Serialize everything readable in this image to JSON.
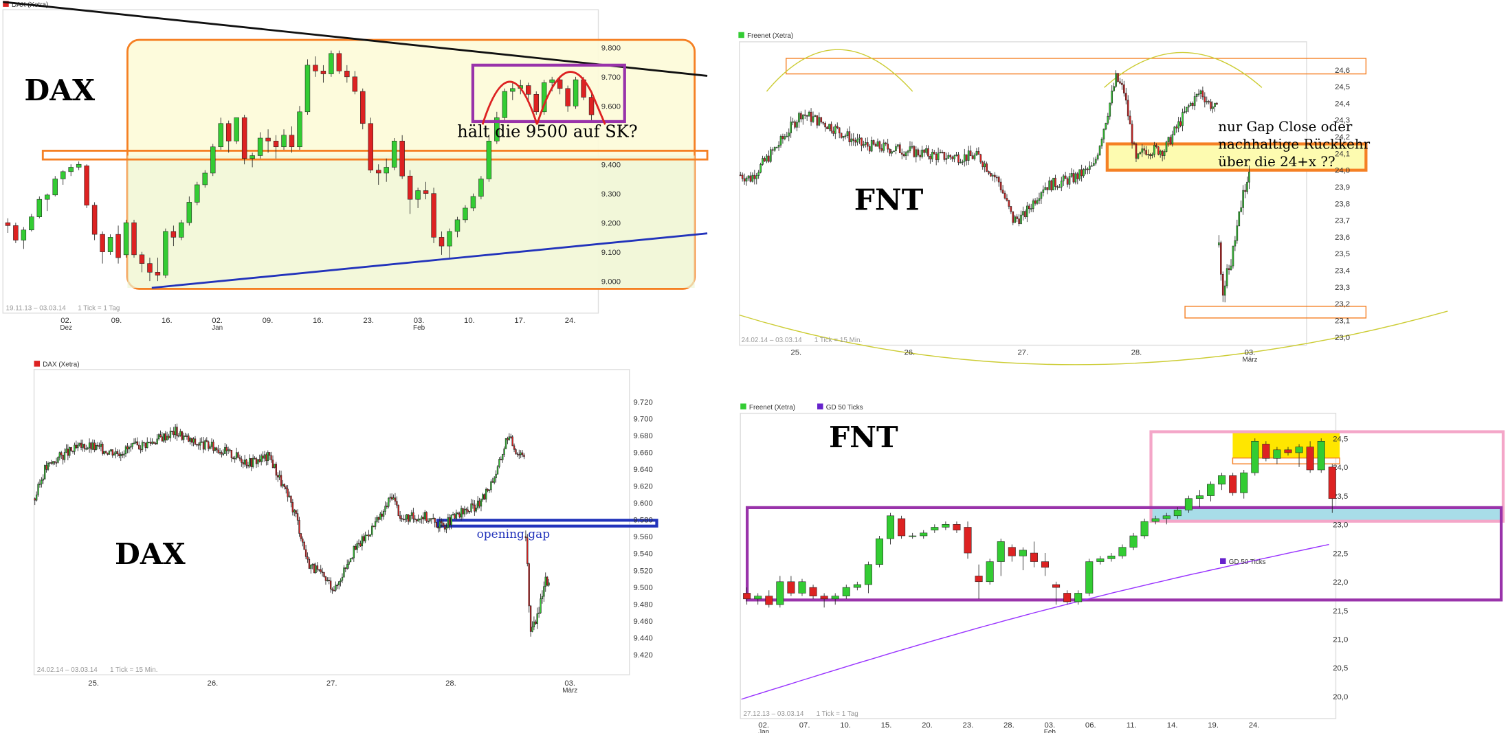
{
  "charts": [
    {
      "id": "dax-daily",
      "legend": "DAX (Xetra)",
      "title": "DAX",
      "range_text": "19.11.13 – 03.03.14",
      "tick_text": "1 Tick = 1 Tag",
      "annotation": "hält die 9500 auf SK?",
      "colors": {
        "up": "#33cc33",
        "down": "#dd2222",
        "box": "#f58024",
        "trend_top": "#111111",
        "trend_bottom": "#2233bb",
        "pattern": "#9933aa"
      }
    },
    {
      "id": "fnt-15min",
      "legend": "Freenet (Xetra)",
      "title": "FNT",
      "range_text": "24.02.14 – 03.03.14",
      "tick_text": "1 Tick = 15 Min.",
      "annotation_lines": [
        "nur Gap Close oder",
        "nachhaltige Rückkehr",
        "über die 24+x ??"
      ],
      "colors": {
        "up": "#33cc33",
        "down": "#dd2222",
        "zone": "#f58024",
        "arc": "#cccc33"
      }
    },
    {
      "id": "dax-15min",
      "legend": "DAX (Xetra)",
      "title": "DAX",
      "range_text": "24.02.14 – 03.03.14",
      "tick_text": "1 Tick = 15 Min.",
      "annotation": "opening gap",
      "colors": {
        "up": "#33cc33",
        "down": "#dd2222",
        "gap": "#2233bb"
      }
    },
    {
      "id": "fnt-daily",
      "legend": "Freenet (Xetra)",
      "legend2": "GD 50 Ticks",
      "inner_legend": "GD 50 Ticks",
      "title": "FNT",
      "range_text": "27.12.13 – 03.03.14",
      "tick_text": "1 Tick = 1 Tag",
      "colors": {
        "up": "#33cc33",
        "down": "#dd2222",
        "gd50": "#9933ff",
        "range_box": "#9933aa",
        "upper_box": "#f4a6c8",
        "highlight": "#ffe600",
        "support_fill": "#a8dde8"
      }
    }
  ],
  "chart_data": [
    {
      "type": "candlestick",
      "title": "DAX",
      "x_ticks": [
        "02.",
        "09.",
        "16.",
        "02.",
        "09.",
        "16.",
        "23.",
        "03.",
        "10.",
        "17.",
        "24."
      ],
      "x_months": [
        "Dez",
        "Jan",
        "Feb"
      ],
      "y_ticks": [
        "9.800",
        "9.700",
        "9.600",
        "9.400",
        "9.300",
        "9.200",
        "9.100",
        "9.000"
      ],
      "ylim": [
        8980,
        9830
      ],
      "candles": [
        [
          9200,
          9215,
          9165,
          9190
        ],
        [
          9190,
          9200,
          9130,
          9140
        ],
        [
          9140,
          9185,
          9110,
          9175
        ],
        [
          9175,
          9230,
          9170,
          9220
        ],
        [
          9220,
          9290,
          9215,
          9280
        ],
        [
          9280,
          9300,
          9240,
          9295
        ],
        [
          9295,
          9360,
          9290,
          9350
        ],
        [
          9350,
          9380,
          9330,
          9375
        ],
        [
          9375,
          9400,
          9360,
          9390
        ],
        [
          9390,
          9410,
          9380,
          9400
        ],
        [
          9395,
          9400,
          9250,
          9260
        ],
        [
          9260,
          9270,
          9140,
          9160
        ],
        [
          9160,
          9170,
          9060,
          9100
        ],
        [
          9100,
          9160,
          9090,
          9150
        ],
        [
          9160,
          9190,
          9060,
          9080
        ],
        [
          9090,
          9210,
          9080,
          9200
        ],
        [
          9200,
          9210,
          9080,
          9090
        ],
        [
          9090,
          9100,
          9030,
          9060
        ],
        [
          9060,
          9080,
          9000,
          9030
        ],
        [
          9030,
          9080,
          9000,
          9020
        ],
        [
          9020,
          9180,
          9010,
          9170
        ],
        [
          9170,
          9190,
          9120,
          9150
        ],
        [
          9150,
          9210,
          9140,
          9200
        ],
        [
          9200,
          9290,
          9190,
          9270
        ],
        [
          9270,
          9340,
          9260,
          9330
        ],
        [
          9330,
          9380,
          9320,
          9370
        ],
        [
          9370,
          9470,
          9360,
          9460
        ],
        [
          9460,
          9560,
          9450,
          9540
        ],
        [
          9540,
          9550,
          9440,
          9480
        ],
        [
          9480,
          9560,
          9470,
          9560
        ],
        [
          9560,
          9570,
          9400,
          9420
        ],
        [
          9420,
          9440,
          9390,
          9430
        ],
        [
          9430,
          9510,
          9420,
          9490
        ],
        [
          9490,
          9520,
          9440,
          9480
        ],
        [
          9480,
          9500,
          9420,
          9460
        ],
        [
          9460,
          9520,
          9450,
          9500
        ],
        [
          9500,
          9530,
          9440,
          9460
        ],
        [
          9460,
          9600,
          9450,
          9580
        ],
        [
          9580,
          9760,
          9570,
          9740
        ],
        [
          9740,
          9770,
          9700,
          9720
        ],
        [
          9720,
          9740,
          9680,
          9710
        ],
        [
          9710,
          9790,
          9700,
          9780
        ],
        [
          9780,
          9790,
          9710,
          9720
        ],
        [
          9720,
          9740,
          9680,
          9700
        ],
        [
          9700,
          9720,
          9640,
          9650
        ],
        [
          9650,
          9660,
          9520,
          9540
        ],
        [
          9540,
          9560,
          9370,
          9380
        ],
        [
          9380,
          9400,
          9330,
          9370
        ],
        [
          9370,
          9420,
          9340,
          9390
        ],
        [
          9390,
          9490,
          9380,
          9480
        ],
        [
          9480,
          9500,
          9350,
          9360
        ],
        [
          9360,
          9380,
          9230,
          9280
        ],
        [
          9280,
          9320,
          9250,
          9310
        ],
        [
          9310,
          9340,
          9280,
          9300
        ],
        [
          9300,
          9320,
          9130,
          9150
        ],
        [
          9150,
          9170,
          9090,
          9120
        ],
        [
          9120,
          9180,
          9080,
          9170
        ],
        [
          9170,
          9220,
          9150,
          9210
        ],
        [
          9210,
          9260,
          9200,
          9250
        ],
        [
          9250,
          9300,
          9240,
          9290
        ],
        [
          9290,
          9360,
          9280,
          9350
        ],
        [
          9350,
          9500,
          9340,
          9480
        ],
        [
          9480,
          9580,
          9470,
          9560
        ],
        [
          9560,
          9660,
          9550,
          9650
        ],
        [
          9650,
          9680,
          9620,
          9660
        ],
        [
          9660,
          9690,
          9640,
          9670
        ],
        [
          9670,
          9680,
          9620,
          9640
        ],
        [
          9640,
          9650,
          9570,
          9580
        ],
        [
          9580,
          9690,
          9570,
          9680
        ],
        [
          9680,
          9700,
          9650,
          9690
        ],
        [
          9690,
          9700,
          9640,
          9660
        ],
        [
          9660,
          9670,
          9580,
          9600
        ],
        [
          9600,
          9700,
          9590,
          9690
        ],
        [
          9690,
          9700,
          9620,
          9630
        ],
        [
          9630,
          9650,
          9550,
          9570
        ]
      ]
    },
    {
      "type": "candlestick",
      "title": "FNT",
      "x_ticks": [
        "25.",
        "26.",
        "27.",
        "28.",
        "03."
      ],
      "x_months": [
        "März"
      ],
      "y_ticks": [
        "24,6",
        "24,5",
        "24,4",
        "24,3",
        "24,2",
        "24,1",
        "24,0",
        "23,9",
        "23,8",
        "23,7",
        "23,6",
        "23,5",
        "23,4",
        "23,3",
        "23,2",
        "23,1",
        "23,0"
      ],
      "ylim": [
        22.98,
        24.68
      ],
      "gap_zone": [
        23.95,
        24.1
      ],
      "top_zone": [
        24.52,
        24.62
      ],
      "bottom_zone": [
        23.1,
        23.18
      ]
    },
    {
      "type": "candlestick",
      "title": "DAX",
      "x_ticks": [
        "25.",
        "26.",
        "27.",
        "28.",
        "03."
      ],
      "x_months": [
        "März"
      ],
      "y_ticks": [
        "9.720",
        "9.700",
        "9.680",
        "9.660",
        "9.640",
        "9.620",
        "9.600",
        "9.580",
        "9.560",
        "9.540",
        "9.520",
        "9.500",
        "9.480",
        "9.460",
        "9.440",
        "9.420"
      ],
      "ylim": [
        9412,
        9735
      ],
      "gap_zone": [
        9570,
        9578
      ]
    },
    {
      "type": "candlestick",
      "title": "FNT",
      "x_ticks": [
        "02.",
        "07.",
        "10.",
        "15.",
        "20.",
        "23.",
        "28.",
        "03.",
        "06.",
        "11.",
        "14.",
        "19.",
        "24."
      ],
      "x_months": [
        "Jan",
        "Feb"
      ],
      "y_ticks": [
        "24,5",
        "24,0",
        "23,5",
        "23,0",
        "22,5",
        "22,0",
        "21,5",
        "21,0",
        "20,5",
        "20,0"
      ],
      "ylim": [
        19.85,
        24.7
      ],
      "series": [
        {
          "name": "GD 50 Ticks",
          "y_start": 19.95,
          "y_end": 22.65
        }
      ],
      "candles": [
        [
          21.8,
          21.9,
          21.6,
          21.7
        ],
        [
          21.7,
          21.8,
          21.6,
          21.75
        ],
        [
          21.75,
          21.85,
          21.55,
          21.6
        ],
        [
          21.6,
          22.1,
          21.55,
          22.0
        ],
        [
          22.0,
          22.1,
          21.75,
          21.8
        ],
        [
          21.8,
          22.05,
          21.75,
          22.0
        ],
        [
          21.9,
          21.95,
          21.7,
          21.75
        ],
        [
          21.75,
          21.8,
          21.55,
          21.7
        ],
        [
          21.7,
          21.8,
          21.6,
          21.75
        ],
        [
          21.75,
          21.95,
          21.7,
          21.9
        ],
        [
          21.9,
          22.0,
          21.85,
          21.95
        ],
        [
          21.95,
          22.35,
          21.8,
          22.3
        ],
        [
          22.3,
          22.8,
          22.25,
          22.75
        ],
        [
          22.75,
          23.2,
          22.65,
          23.15
        ],
        [
          23.1,
          23.15,
          22.75,
          22.8
        ],
        [
          22.8,
          22.85,
          22.75,
          22.8
        ],
        [
          22.8,
          22.9,
          22.75,
          22.85
        ],
        [
          22.9,
          23.0,
          22.85,
          22.95
        ],
        [
          22.95,
          23.05,
          22.9,
          23.0
        ],
        [
          23.0,
          23.05,
          22.85,
          22.9
        ],
        [
          22.95,
          23.05,
          22.4,
          22.5
        ],
        [
          22.1,
          22.3,
          21.7,
          22.0
        ],
        [
          22.0,
          22.4,
          21.95,
          22.35
        ],
        [
          22.35,
          22.75,
          22.1,
          22.7
        ],
        [
          22.6,
          22.65,
          22.35,
          22.45
        ],
        [
          22.45,
          22.6,
          22.2,
          22.55
        ],
        [
          22.5,
          22.7,
          22.25,
          22.35
        ],
        [
          22.35,
          22.5,
          22.1,
          22.25
        ],
        [
          21.95,
          22.0,
          21.6,
          21.9
        ],
        [
          21.8,
          21.85,
          21.6,
          21.65
        ],
        [
          21.65,
          21.85,
          21.6,
          21.8
        ],
        [
          21.8,
          22.4,
          21.75,
          22.35
        ],
        [
          22.35,
          22.45,
          22.3,
          22.4
        ],
        [
          22.4,
          22.5,
          22.35,
          22.45
        ],
        [
          22.45,
          22.65,
          22.4,
          22.6
        ],
        [
          22.6,
          22.85,
          22.55,
          22.8
        ],
        [
          22.8,
          23.1,
          22.75,
          23.05
        ],
        [
          23.05,
          23.15,
          23.0,
          23.1
        ],
        [
          23.1,
          23.2,
          23.0,
          23.15
        ],
        [
          23.15,
          23.3,
          23.1,
          23.25
        ],
        [
          23.25,
          23.5,
          23.2,
          23.45
        ],
        [
          23.45,
          23.6,
          23.3,
          23.5
        ],
        [
          23.5,
          23.75,
          23.4,
          23.7
        ],
        [
          23.7,
          23.9,
          23.6,
          23.85
        ],
        [
          23.85,
          23.9,
          23.5,
          23.55
        ],
        [
          23.55,
          23.95,
          23.45,
          23.9
        ],
        [
          23.9,
          24.5,
          23.85,
          24.45
        ],
        [
          24.4,
          24.45,
          24.1,
          24.15
        ],
        [
          24.15,
          24.35,
          24.05,
          24.3
        ],
        [
          24.3,
          24.35,
          24.2,
          24.25
        ],
        [
          24.25,
          24.4,
          24.0,
          24.35
        ],
        [
          24.35,
          24.45,
          23.9,
          23.95
        ],
        [
          23.95,
          24.5,
          23.9,
          24.45
        ],
        [
          24.0,
          24.05,
          23.2,
          23.45
        ]
      ]
    }
  ]
}
